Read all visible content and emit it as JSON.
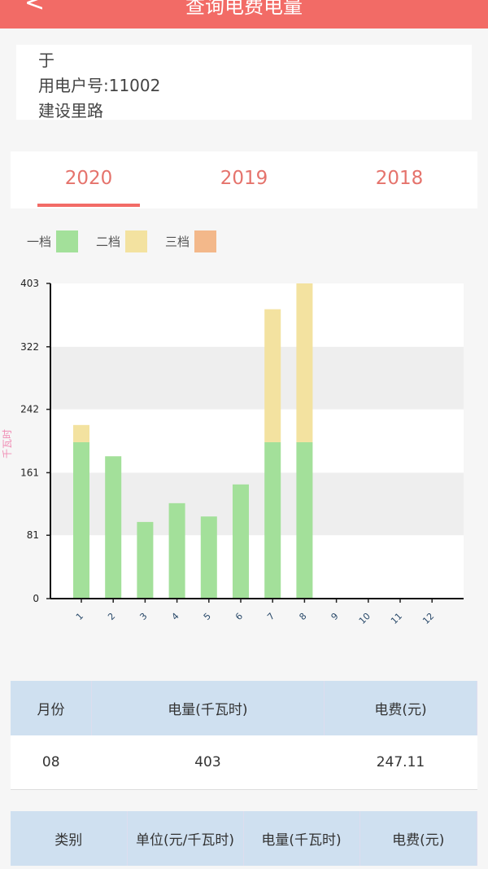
{
  "header": {
    "title": "查询电费电量",
    "back_icon": "chevron-left-icon"
  },
  "account": {
    "name": "于",
    "account_no": "用电户号:11002",
    "address": "建设里路"
  },
  "tabs": [
    {
      "label": "2020",
      "active": true
    },
    {
      "label": "2019"
    },
    {
      "label": "2018"
    }
  ],
  "legend": [
    {
      "label": "一档",
      "color": "#a3e09a"
    },
    {
      "label": "二档",
      "color": "#f3e2a0"
    },
    {
      "label": "三档",
      "color": "#f3b88a"
    }
  ],
  "chart_data": {
    "type": "bar",
    "stacked": true,
    "ylabel": "千瓦时",
    "ylim": [
      0,
      403
    ],
    "yticks": [
      "0",
      "81",
      "161",
      "242",
      "322",
      "403"
    ],
    "categories": [
      "1",
      "2",
      "3",
      "4",
      "5",
      "6",
      "7",
      "8",
      "9",
      "10",
      "11",
      "12"
    ],
    "series": [
      {
        "name": "一档",
        "values": [
          200,
          182,
          98,
          122,
          105,
          146,
          200,
          200,
          0,
          0,
          0,
          0
        ]
      },
      {
        "name": "二档",
        "values": [
          22,
          0,
          0,
          0,
          0,
          0,
          170,
          203,
          0,
          0,
          0,
          0
        ]
      },
      {
        "name": "三档",
        "values": [
          0,
          0,
          0,
          0,
          0,
          0,
          0,
          0,
          0,
          0,
          0,
          0
        ]
      }
    ]
  },
  "summary": {
    "headers": [
      "月份",
      "电量(千瓦时)",
      "电费(元)"
    ],
    "row": [
      "08",
      "403",
      "247.11"
    ]
  },
  "detail": {
    "headers": [
      "类别",
      "单位(元/千瓦时)",
      "电量(千瓦时)",
      "电费(元)"
    ]
  }
}
